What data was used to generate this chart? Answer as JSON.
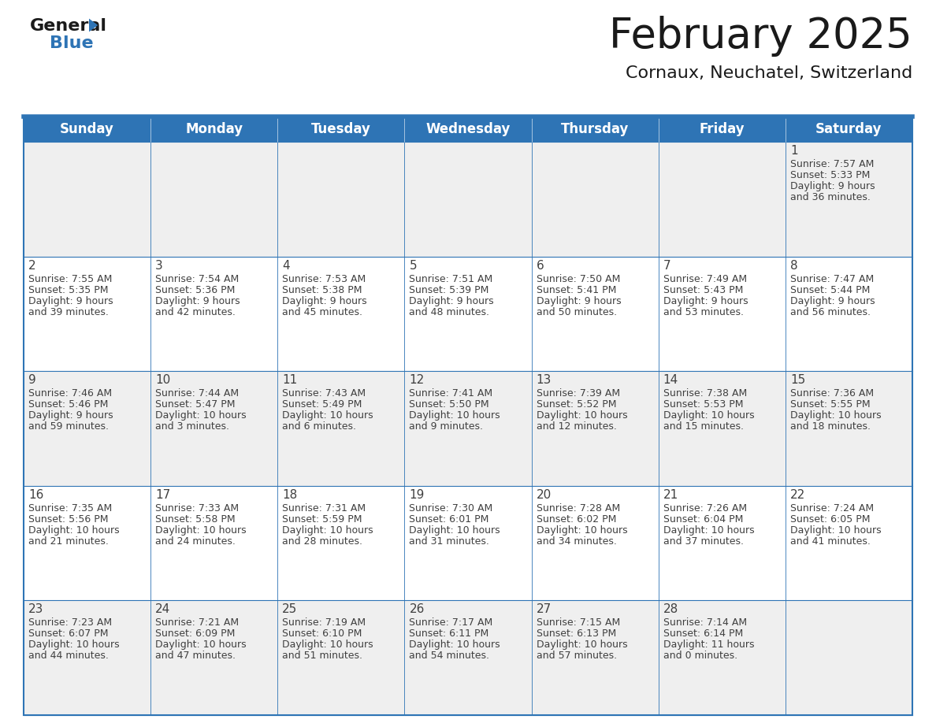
{
  "title": "February 2025",
  "subtitle": "Cornaux, Neuchatel, Switzerland",
  "header_color": "#2E74B5",
  "header_text_color": "#FFFFFF",
  "day_names": [
    "Sunday",
    "Monday",
    "Tuesday",
    "Wednesday",
    "Thursday",
    "Friday",
    "Saturday"
  ],
  "background_color": "#FFFFFF",
  "cell_alt_color": "#EFEFEF",
  "border_color": "#2E74B5",
  "text_color": "#404040",
  "days": [
    {
      "day": 1,
      "col": 6,
      "row": 0,
      "sunrise": "7:57 AM",
      "sunset": "5:33 PM",
      "daylight_line1": "Daylight: 9 hours",
      "daylight_line2": "and 36 minutes."
    },
    {
      "day": 2,
      "col": 0,
      "row": 1,
      "sunrise": "7:55 AM",
      "sunset": "5:35 PM",
      "daylight_line1": "Daylight: 9 hours",
      "daylight_line2": "and 39 minutes."
    },
    {
      "day": 3,
      "col": 1,
      "row": 1,
      "sunrise": "7:54 AM",
      "sunset": "5:36 PM",
      "daylight_line1": "Daylight: 9 hours",
      "daylight_line2": "and 42 minutes."
    },
    {
      "day": 4,
      "col": 2,
      "row": 1,
      "sunrise": "7:53 AM",
      "sunset": "5:38 PM",
      "daylight_line1": "Daylight: 9 hours",
      "daylight_line2": "and 45 minutes."
    },
    {
      "day": 5,
      "col": 3,
      "row": 1,
      "sunrise": "7:51 AM",
      "sunset": "5:39 PM",
      "daylight_line1": "Daylight: 9 hours",
      "daylight_line2": "and 48 minutes."
    },
    {
      "day": 6,
      "col": 4,
      "row": 1,
      "sunrise": "7:50 AM",
      "sunset": "5:41 PM",
      "daylight_line1": "Daylight: 9 hours",
      "daylight_line2": "and 50 minutes."
    },
    {
      "day": 7,
      "col": 5,
      "row": 1,
      "sunrise": "7:49 AM",
      "sunset": "5:43 PM",
      "daylight_line1": "Daylight: 9 hours",
      "daylight_line2": "and 53 minutes."
    },
    {
      "day": 8,
      "col": 6,
      "row": 1,
      "sunrise": "7:47 AM",
      "sunset": "5:44 PM",
      "daylight_line1": "Daylight: 9 hours",
      "daylight_line2": "and 56 minutes."
    },
    {
      "day": 9,
      "col": 0,
      "row": 2,
      "sunrise": "7:46 AM",
      "sunset": "5:46 PM",
      "daylight_line1": "Daylight: 9 hours",
      "daylight_line2": "and 59 minutes."
    },
    {
      "day": 10,
      "col": 1,
      "row": 2,
      "sunrise": "7:44 AM",
      "sunset": "5:47 PM",
      "daylight_line1": "Daylight: 10 hours",
      "daylight_line2": "and 3 minutes."
    },
    {
      "day": 11,
      "col": 2,
      "row": 2,
      "sunrise": "7:43 AM",
      "sunset": "5:49 PM",
      "daylight_line1": "Daylight: 10 hours",
      "daylight_line2": "and 6 minutes."
    },
    {
      "day": 12,
      "col": 3,
      "row": 2,
      "sunrise": "7:41 AM",
      "sunset": "5:50 PM",
      "daylight_line1": "Daylight: 10 hours",
      "daylight_line2": "and 9 minutes."
    },
    {
      "day": 13,
      "col": 4,
      "row": 2,
      "sunrise": "7:39 AM",
      "sunset": "5:52 PM",
      "daylight_line1": "Daylight: 10 hours",
      "daylight_line2": "and 12 minutes."
    },
    {
      "day": 14,
      "col": 5,
      "row": 2,
      "sunrise": "7:38 AM",
      "sunset": "5:53 PM",
      "daylight_line1": "Daylight: 10 hours",
      "daylight_line2": "and 15 minutes."
    },
    {
      "day": 15,
      "col": 6,
      "row": 2,
      "sunrise": "7:36 AM",
      "sunset": "5:55 PM",
      "daylight_line1": "Daylight: 10 hours",
      "daylight_line2": "and 18 minutes."
    },
    {
      "day": 16,
      "col": 0,
      "row": 3,
      "sunrise": "7:35 AM",
      "sunset": "5:56 PM",
      "daylight_line1": "Daylight: 10 hours",
      "daylight_line2": "and 21 minutes."
    },
    {
      "day": 17,
      "col": 1,
      "row": 3,
      "sunrise": "7:33 AM",
      "sunset": "5:58 PM",
      "daylight_line1": "Daylight: 10 hours",
      "daylight_line2": "and 24 minutes."
    },
    {
      "day": 18,
      "col": 2,
      "row": 3,
      "sunrise": "7:31 AM",
      "sunset": "5:59 PM",
      "daylight_line1": "Daylight: 10 hours",
      "daylight_line2": "and 28 minutes."
    },
    {
      "day": 19,
      "col": 3,
      "row": 3,
      "sunrise": "7:30 AM",
      "sunset": "6:01 PM",
      "daylight_line1": "Daylight: 10 hours",
      "daylight_line2": "and 31 minutes."
    },
    {
      "day": 20,
      "col": 4,
      "row": 3,
      "sunrise": "7:28 AM",
      "sunset": "6:02 PM",
      "daylight_line1": "Daylight: 10 hours",
      "daylight_line2": "and 34 minutes."
    },
    {
      "day": 21,
      "col": 5,
      "row": 3,
      "sunrise": "7:26 AM",
      "sunset": "6:04 PM",
      "daylight_line1": "Daylight: 10 hours",
      "daylight_line2": "and 37 minutes."
    },
    {
      "day": 22,
      "col": 6,
      "row": 3,
      "sunrise": "7:24 AM",
      "sunset": "6:05 PM",
      "daylight_line1": "Daylight: 10 hours",
      "daylight_line2": "and 41 minutes."
    },
    {
      "day": 23,
      "col": 0,
      "row": 4,
      "sunrise": "7:23 AM",
      "sunset": "6:07 PM",
      "daylight_line1": "Daylight: 10 hours",
      "daylight_line2": "and 44 minutes."
    },
    {
      "day": 24,
      "col": 1,
      "row": 4,
      "sunrise": "7:21 AM",
      "sunset": "6:09 PM",
      "daylight_line1": "Daylight: 10 hours",
      "daylight_line2": "and 47 minutes."
    },
    {
      "day": 25,
      "col": 2,
      "row": 4,
      "sunrise": "7:19 AM",
      "sunset": "6:10 PM",
      "daylight_line1": "Daylight: 10 hours",
      "daylight_line2": "and 51 minutes."
    },
    {
      "day": 26,
      "col": 3,
      "row": 4,
      "sunrise": "7:17 AM",
      "sunset": "6:11 PM",
      "daylight_line1": "Daylight: 10 hours",
      "daylight_line2": "and 54 minutes."
    },
    {
      "day": 27,
      "col": 4,
      "row": 4,
      "sunrise": "7:15 AM",
      "sunset": "6:13 PM",
      "daylight_line1": "Daylight: 10 hours",
      "daylight_line2": "and 57 minutes."
    },
    {
      "day": 28,
      "col": 5,
      "row": 4,
      "sunrise": "7:14 AM",
      "sunset": "6:14 PM",
      "daylight_line1": "Daylight: 11 hours",
      "daylight_line2": "and 0 minutes."
    }
  ],
  "logo_text_general": "General",
  "logo_text_blue": "Blue",
  "logo_general_color": "#1A1A1A",
  "logo_blue_color": "#2E74B5",
  "logo_triangle_color": "#2E74B5",
  "title_fontsize": 38,
  "subtitle_fontsize": 16,
  "header_fontsize": 12,
  "daynum_fontsize": 11,
  "info_fontsize": 9
}
